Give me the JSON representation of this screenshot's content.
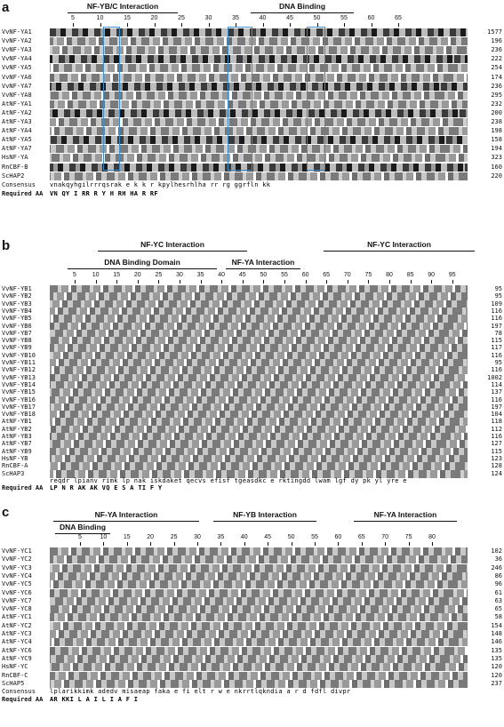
{
  "panels": [
    {
      "label": "a",
      "regions": [
        "NF-YB/C Interaction",
        "DNA Binding"
      ],
      "ticks": [
        "5",
        "10",
        "15",
        "20",
        "25",
        "30",
        "35",
        "40",
        "45",
        "50",
        "55",
        "60",
        "65"
      ],
      "rows": [
        {
          "name": "VvNF-YA1",
          "len": "1577"
        },
        {
          "name": "VvNF-YA2",
          "len": "196"
        },
        {
          "name": "VvNF-YA3",
          "len": "236"
        },
        {
          "name": "VvNF-YA4",
          "len": "222"
        },
        {
          "name": "VvNF-YA5",
          "len": "254"
        },
        {
          "name": "VvNF-YA6",
          "len": "174"
        },
        {
          "name": "VvNF-YA7",
          "len": "236"
        },
        {
          "name": "VvNF-YA8",
          "len": "295"
        },
        {
          "name": "AtNF-YA1",
          "len": "232"
        },
        {
          "name": "AtNF-YA2",
          "len": "200"
        },
        {
          "name": "AtNF-YA3",
          "len": "238"
        },
        {
          "name": "AtNF-YA4",
          "len": "198"
        },
        {
          "name": "AtNF-YA5",
          "len": "158"
        },
        {
          "name": "AtNF-YA7",
          "len": "194"
        },
        {
          "name": "HsNF-YA",
          "len": "323"
        },
        {
          "name": "RnCBF-B",
          "len": "160"
        },
        {
          "name": "ScHAP2",
          "len": "220"
        }
      ],
      "consensus_label": "Consensus",
      "consensus": "vnakqyhgilrrrqsrak e          k  k r      kpylhesrhlha rr rg  ggrfln kk",
      "required_label": "Required AA",
      "required": "VN  QY  I  RR                  R        Y H  RH HA R      RF"
    },
    {
      "label": "b",
      "regions": [
        "NF-YC Interaction",
        "DNA Binding Domain",
        "NF-YA Interaction",
        "NF-YC Interaction"
      ],
      "ticks": [
        "5",
        "10",
        "15",
        "20",
        "25",
        "30",
        "35",
        "40",
        "45",
        "50",
        "55",
        "60",
        "65",
        "70",
        "75",
        "80",
        "85",
        "90",
        "95"
      ],
      "rows": [
        {
          "name": "VvNF-YB1",
          "len": "95"
        },
        {
          "name": "VvNF-YB2",
          "len": "95"
        },
        {
          "name": "VvNF-YB3",
          "len": "109"
        },
        {
          "name": "VvNF-YB4",
          "len": "116"
        },
        {
          "name": "VvNF-YB5",
          "len": "116"
        },
        {
          "name": "VvNF-YB6",
          "len": "197"
        },
        {
          "name": "VvNF-YB7",
          "len": "78"
        },
        {
          "name": "VvNF-YB8",
          "len": "115"
        },
        {
          "name": "VvNF-YB9",
          "len": "117"
        },
        {
          "name": "VvNF-YB10",
          "len": "116"
        },
        {
          "name": "VvNF-YB11",
          "len": "95"
        },
        {
          "name": "VvNF-YB12",
          "len": "116"
        },
        {
          "name": "VvNF-YB13",
          "len": "1002"
        },
        {
          "name": "VvNF-YB14",
          "len": "114"
        },
        {
          "name": "VvNF-YB15",
          "len": "137"
        },
        {
          "name": "VvNF-YB16",
          "len": "116"
        },
        {
          "name": "VvNF-YB17",
          "len": "197"
        },
        {
          "name": "VvNF-YB18",
          "len": "104"
        },
        {
          "name": "AtNF-YB1",
          "len": "118"
        },
        {
          "name": "AtNF-YB2",
          "len": "112"
        },
        {
          "name": "AtNF-YB3",
          "len": "116"
        },
        {
          "name": "AtNF-YB7",
          "len": "127"
        },
        {
          "name": "AtNF-YB9",
          "len": "115"
        },
        {
          "name": "HsNF-YB",
          "len": "123"
        },
        {
          "name": "RnCBF-A",
          "len": "128"
        },
        {
          "name": "ScHAP3",
          "len": "124"
        }
      ],
      "consensus_label": "",
      "consensus": "reqdr lpianv rimk lp nak    iskdaket qecvs     efisf tgeasdkc e rktingdd  lwam  lgf dy  pk yl yre e",
      "required_label": "Required AA",
      "required": "   LP  N  R               AK AK  VQ        E     S  A        TI       F          Y"
    },
    {
      "label": "c",
      "regions": [
        "NF-YA Interaction",
        "NF-YB Interaction",
        "NF-YA Interaction",
        "DNA Binding"
      ],
      "ticks": [
        "5",
        "10",
        "15",
        "20",
        "25",
        "30",
        "35",
        "40",
        "45",
        "50",
        "55",
        "60",
        "65",
        "70",
        "75",
        "80"
      ],
      "rows": [
        {
          "name": "VvNF-YC1",
          "len": "102"
        },
        {
          "name": "VvNF-YC2",
          "len": "36"
        },
        {
          "name": "VvNF-YC3",
          "len": "246"
        },
        {
          "name": "VvNF-YC4",
          "len": "86"
        },
        {
          "name": "VvNF-YC5",
          "len": "96"
        },
        {
          "name": "VvNF-YC6",
          "len": "61"
        },
        {
          "name": "VvNF-YC7",
          "len": "63"
        },
        {
          "name": "VvNF-YC8",
          "len": "65"
        },
        {
          "name": "AtNF-YC1",
          "len": "58"
        },
        {
          "name": "AtNF-YC2",
          "len": "154"
        },
        {
          "name": "AtNF-YC3",
          "len": "148"
        },
        {
          "name": "AtNF-YC4",
          "len": "146"
        },
        {
          "name": "AtNF-YC6",
          "len": "135"
        },
        {
          "name": "AtNF-YC9",
          "len": "135"
        },
        {
          "name": "HsNF-YC",
          "len": "120"
        },
        {
          "name": "RnCBF-C",
          "len": "120"
        },
        {
          "name": "ScHAP5",
          "len": "237"
        }
      ],
      "consensus_label": "Consensus",
      "consensus": "lplarikkimk adedv misaeap faka e fi elt r w     e nkrrtlqkndia a r d fdfl divpr",
      "required_label": "Required AA",
      "required": "  AR  KKI               L A     I L                      I A       F I"
    }
  ]
}
